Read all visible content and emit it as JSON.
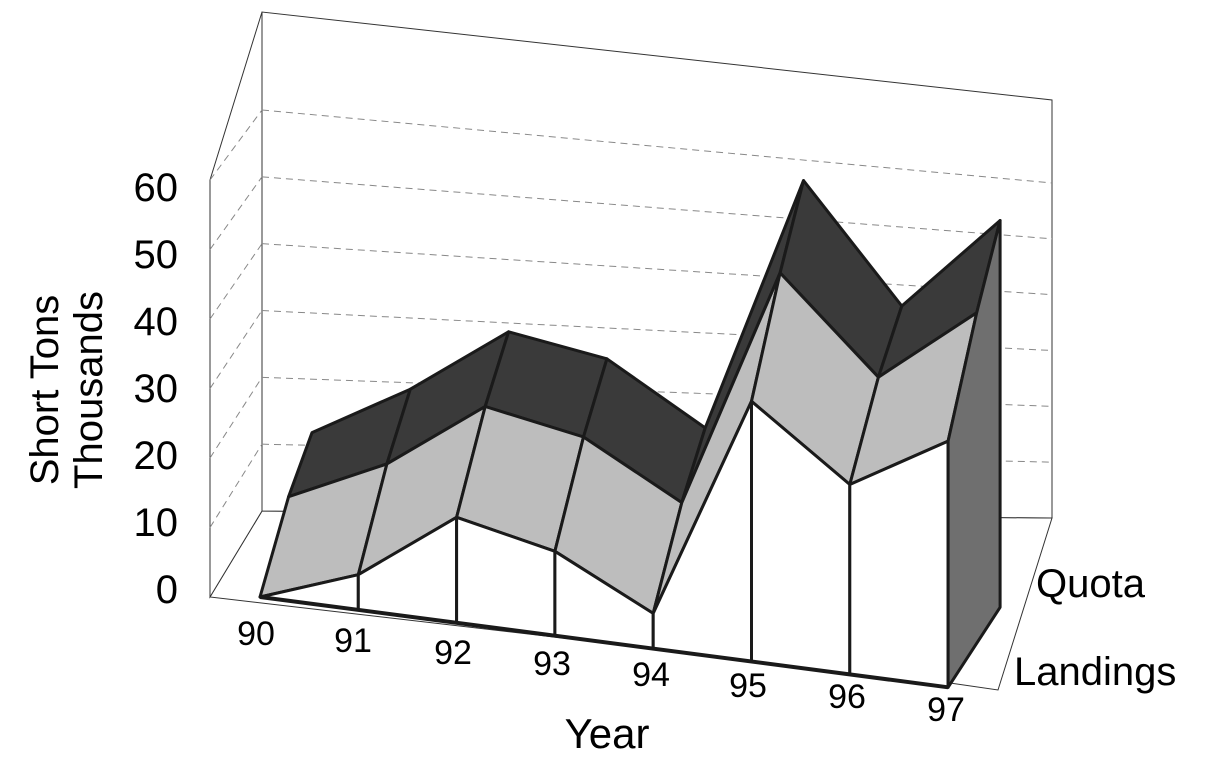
{
  "chart_data": {
    "type": "area",
    "style": "3d-ribbon",
    "title": "",
    "xlabel": "Year",
    "ylabel_lines": [
      "Short Tons",
      "Thousands"
    ],
    "ylim": [
      0,
      60
    ],
    "yticks": [
      "0",
      "10",
      "20",
      "30",
      "40",
      "50",
      "60"
    ],
    "categories": [
      "90",
      "91",
      "92",
      "93",
      "94",
      "95",
      "96",
      "97"
    ],
    "depth_labels": [
      "Landings",
      "Quota"
    ],
    "grid": true,
    "series": [
      {
        "name": "Landings",
        "values": [
          0,
          5,
          15,
          12,
          5,
          37,
          27,
          35
        ]
      },
      {
        "name": "Quota",
        "values": [
          12,
          20,
          30,
          28,
          20,
          57,
          41,
          55
        ]
      }
    ],
    "colors": {
      "front_face": "#ffffff",
      "ribbon_landings": "#bdbdbd",
      "ribbon_quota": "#3a3a3a",
      "mid_face": "#8f8f8f",
      "end_cap": "#6f6f6f",
      "edge": "#1a1a1a",
      "grid": "#888888"
    }
  }
}
